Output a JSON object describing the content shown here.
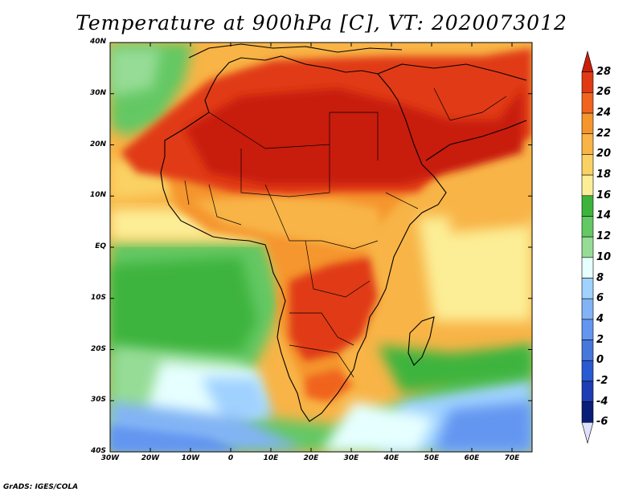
{
  "title": "Temperature at 900hPa [C], VT: 2020073012",
  "credit": "GrADS: IGES/COLA",
  "lat_labels": [
    "40N",
    "30N",
    "20N",
    "10N",
    "EQ",
    "10S",
    "20S",
    "30S",
    "40S"
  ],
  "lon_labels": [
    "30W",
    "20W",
    "10W",
    "0",
    "10E",
    "20E",
    "30E",
    "40E",
    "50E",
    "60E",
    "70E"
  ],
  "colorbar": {
    "labels": [
      "28",
      "26",
      "24",
      "22",
      "20",
      "18",
      "16",
      "14",
      "12",
      "10",
      "8",
      "6",
      "4",
      "2",
      "0",
      "-2",
      "-4",
      "-6"
    ],
    "colors": [
      "#c81e0a",
      "#e03a14",
      "#f0641e",
      "#f5962d",
      "#f8b446",
      "#fad264",
      "#fcee96",
      "#3cb43c",
      "#64c864",
      "#96dc96",
      "#e6ffff",
      "#a0d2ff",
      "#82b4f5",
      "#6496f0",
      "#4678dc",
      "#285ad2",
      "#1e3cb4",
      "#0a1e78",
      "#e0e0ff"
    ]
  }
}
